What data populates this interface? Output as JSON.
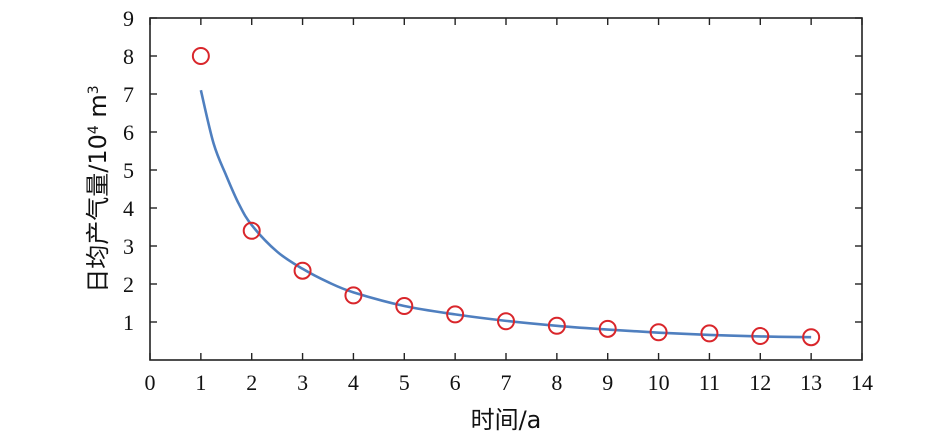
{
  "chart_data": {
    "type": "scatter",
    "title": "",
    "xlabel": "时间/a",
    "ylabel_main": "日均产气量/10",
    "ylabel_exp": "4",
    "ylabel_unit": " m",
    "ylabel_unit_exp": "3",
    "xlim": [
      0,
      14
    ],
    "ylim": [
      0,
      9
    ],
    "xticks": [
      "0",
      "1",
      "2",
      "3",
      "4",
      "5",
      "6",
      "7",
      "8",
      "9",
      "10",
      "11",
      "12",
      "13",
      "14"
    ],
    "yticks": [
      "1",
      "2",
      "3",
      "4",
      "5",
      "6",
      "7",
      "8",
      "9"
    ],
    "grid": false,
    "colors": {
      "points": "#d9262b",
      "fit": "#4f7fbf"
    },
    "series": [
      {
        "kind": "points",
        "x": [
          1,
          2,
          3,
          4,
          5,
          6,
          7,
          8,
          9,
          10,
          11,
          12,
          13
        ],
        "y": [
          8.0,
          3.4,
          2.35,
          1.7,
          1.42,
          1.2,
          1.02,
          0.9,
          0.82,
          0.73,
          0.7,
          0.63,
          0.6
        ]
      },
      {
        "kind": "line",
        "x": [
          1,
          1.25,
          1.5,
          1.75,
          2,
          2.5,
          3,
          3.5,
          4,
          5,
          6,
          7,
          8,
          9,
          10,
          11,
          12,
          13
        ],
        "y": [
          7.1,
          5.7,
          4.85,
          4.1,
          3.55,
          2.85,
          2.4,
          2.05,
          1.78,
          1.42,
          1.2,
          1.03,
          0.9,
          0.8,
          0.72,
          0.66,
          0.62,
          0.6
        ]
      }
    ]
  }
}
